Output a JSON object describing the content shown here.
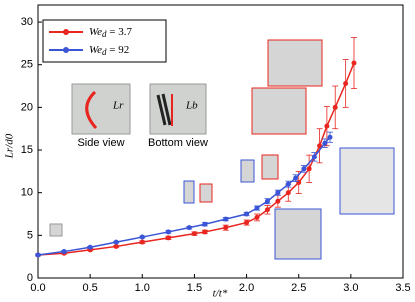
{
  "chart_data": {
    "type": "line",
    "x_label": "t/t*",
    "y_label": "Lr/d0",
    "xlim": [
      0,
      3.5
    ],
    "ylim": [
      0,
      32
    ],
    "xticks": [
      {
        "value": 0,
        "label": "0.0"
      },
      {
        "value": 0.5,
        "label": "0.5"
      },
      {
        "value": 1,
        "label": "1.0"
      },
      {
        "value": 1.5,
        "label": "1.5"
      },
      {
        "value": 2,
        "label": "2.0"
      },
      {
        "value": 2.5,
        "label": "2.5"
      },
      {
        "value": 3,
        "label": "3.0"
      },
      {
        "value": 3.5,
        "label": "3.5"
      }
    ],
    "yticks": [
      0,
      5,
      10,
      15,
      20,
      25,
      30
    ],
    "legend": "upper left",
    "annotations": [
      "Side view",
      "Bottom view",
      "Lr",
      "Lb"
    ],
    "series": [
      {
        "name": "We_d = 3.7",
        "color": "#e8251f",
        "x": [
          0,
          0.25,
          0.5,
          0.75,
          1.0,
          1.25,
          1.5,
          1.6,
          1.8,
          2.0,
          2.1,
          2.2,
          2.3,
          2.4,
          2.5,
          2.6,
          2.7,
          2.77,
          2.85,
          2.95,
          3.03
        ],
        "values": [
          2.7,
          2.9,
          3.3,
          3.7,
          4.2,
          4.7,
          5.2,
          5.4,
          5.9,
          6.5,
          7.1,
          8.0,
          9.0,
          10.0,
          11.2,
          12.8,
          15.5,
          17.8,
          20,
          22.8,
          25.2
        ],
        "errors": [
          0.1,
          0.1,
          0.1,
          0.1,
          0.15,
          0.2,
          0.2,
          0.2,
          0.3,
          0.3,
          0.4,
          0.5,
          0.7,
          1.0,
          1.3,
          1.6,
          2.0,
          2.3,
          2.5,
          2.8,
          3.0
        ]
      },
      {
        "name": "We_d = 92",
        "color": "#3a55d6",
        "x": [
          0,
          0.25,
          0.5,
          0.75,
          1.0,
          1.25,
          1.45,
          1.6,
          1.8,
          2.0,
          2.1,
          2.2,
          2.3,
          2.4,
          2.47,
          2.55,
          2.65,
          2.75,
          2.8
        ],
        "values": [
          2.7,
          3.1,
          3.6,
          4.2,
          4.8,
          5.4,
          5.9,
          6.3,
          6.9,
          7.5,
          8.2,
          9.0,
          10.0,
          11.0,
          11.7,
          12.8,
          14.2,
          15.8,
          16.5
        ],
        "errors": [
          0.1,
          0.1,
          0.1,
          0.1,
          0.1,
          0.15,
          0.15,
          0.2,
          0.2,
          0.2,
          0.25,
          0.3,
          0.3,
          0.35,
          0.4,
          0.4,
          0.5,
          0.5,
          0.6
        ]
      }
    ]
  }
}
